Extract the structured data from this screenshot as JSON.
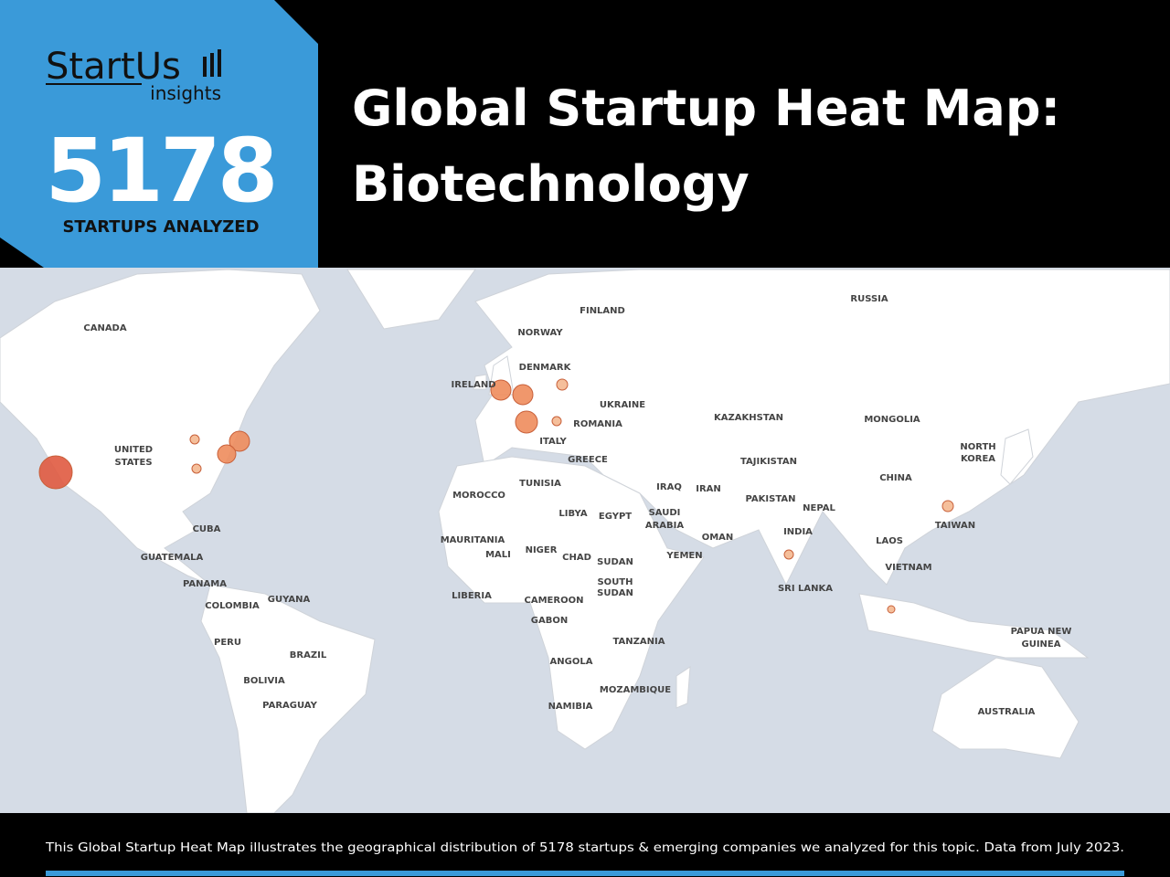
{
  "header": {
    "logo": "StartUs",
    "logo_sub": "insights",
    "count": "5178",
    "count_label": "STARTUPS ANALYZED",
    "title_lines": [
      "Global Startup Heat Map:",
      "Biotechnology"
    ]
  },
  "map": {
    "labels": [
      "CANADA",
      "UNITED",
      "STATES",
      "CUBA",
      "GUATEMALA",
      "PANAMA",
      "COLOMBIA",
      "GUYANA",
      "PERU",
      "BRAZIL",
      "BOLIVIA",
      "PARAGUAY",
      "NORWAY",
      "FINLAND",
      "DENMARK",
      "IRELAND",
      "UKRAINE",
      "ROMANIA",
      "ITALY",
      "GREECE",
      "TUNISIA",
      "MOROCCO",
      "LIBYA",
      "EGYPT",
      "IRAQ",
      "IRAN",
      "SAUDI",
      "ARABIA",
      "OMAN",
      "YEMEN",
      "MAURITANIA",
      "MALI",
      "NIGER",
      "CHAD",
      "SUDAN",
      "SOUTH",
      "SUDAN",
      "LIBERIA",
      "CAMEROON",
      "GABON",
      "TANZANIA",
      "ANGOLA",
      "MOZAMBIQUE",
      "NAMIBIA",
      "RUSSIA",
      "KAZAKHSTAN",
      "MONGOLIA",
      "TAJIKISTAN",
      "PAKISTAN",
      "NEPAL",
      "INDIA",
      "SRI LANKA",
      "CHINA",
      "NORTH",
      "KOREA",
      "TAIWAN",
      "LAOS",
      "VIETNAM",
      "PAPUA NEW",
      "GUINEA",
      "AUSTRALIA"
    ]
  },
  "footer": {
    "text": "This Global Startup Heat Map illustrates the geographical distribution of 5178 startups & emerging companies we analyzed for this topic. Data from July 2023."
  }
}
